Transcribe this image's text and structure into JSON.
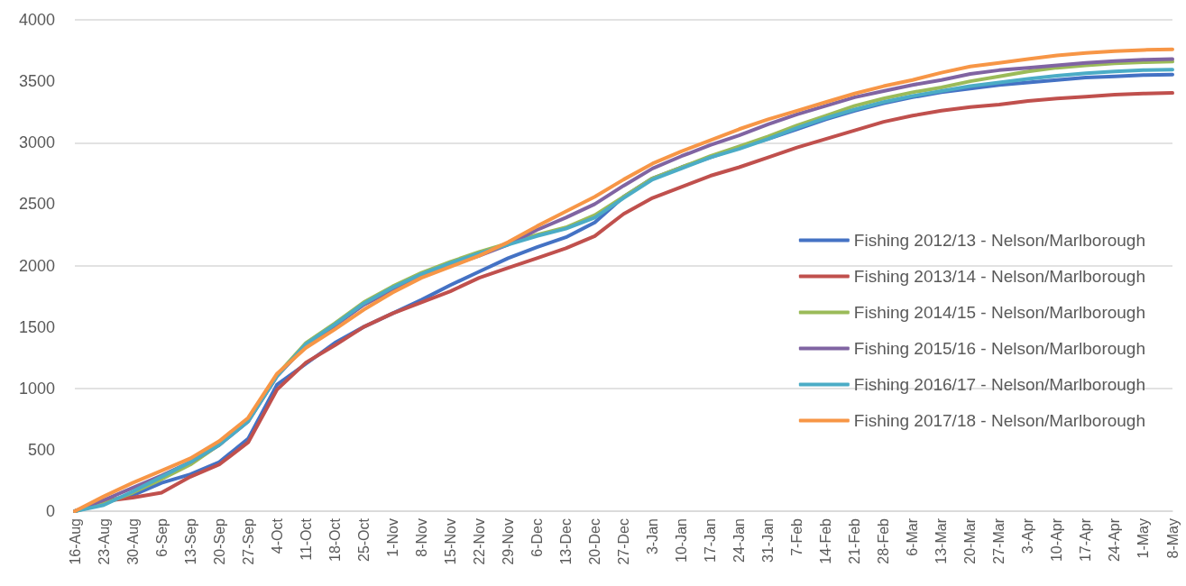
{
  "chart_data": {
    "type": "line",
    "categories": [
      "16-Aug",
      "23-Aug",
      "30-Aug",
      "6-Sep",
      "13-Sep",
      "20-Sep",
      "27-Sep",
      "4-Oct",
      "11-Oct",
      "18-Oct",
      "25-Oct",
      "1-Nov",
      "8-Nov",
      "15-Nov",
      "22-Nov",
      "29-Nov",
      "6-Dec",
      "13-Dec",
      "20-Dec",
      "27-Dec",
      "3-Jan",
      "10-Jan",
      "17-Jan",
      "24-Jan",
      "31-Jan",
      "7-Feb",
      "14-Feb",
      "21-Feb",
      "28-Feb",
      "6-Mar",
      "13-Mar",
      "20-Mar",
      "27-Mar",
      "3-Apr",
      "10-Apr",
      "17-Apr",
      "24-Apr",
      "1-May",
      "8-May"
    ],
    "series": [
      {
        "name": "Fishing 2012/13 - Nelson/Marlborough",
        "color": "#4472c4",
        "values": [
          0,
          80,
          130,
          230,
          300,
          400,
          590,
          1030,
          1200,
          1370,
          1500,
          1610,
          1720,
          1840,
          1950,
          2060,
          2150,
          2230,
          2350,
          2560,
          2710,
          2800,
          2880,
          2960,
          3030,
          3110,
          3190,
          3260,
          3320,
          3370,
          3410,
          3440,
          3470,
          3490,
          3510,
          3530,
          3540,
          3550,
          3555
        ]
      },
      {
        "name": "Fishing 2013/14 - Nelson/Marlborough",
        "color": "#c0504d",
        "values": [
          0,
          80,
          110,
          150,
          280,
          380,
          560,
          990,
          1210,
          1350,
          1500,
          1610,
          1700,
          1790,
          1900,
          1980,
          2060,
          2140,
          2240,
          2420,
          2550,
          2640,
          2730,
          2800,
          2880,
          2960,
          3030,
          3100,
          3170,
          3220,
          3260,
          3290,
          3310,
          3340,
          3360,
          3375,
          3390,
          3400,
          3405
        ]
      },
      {
        "name": "Fishing 2014/15 - Nelson/Marlborough",
        "color": "#9bbb59",
        "values": [
          0,
          60,
          150,
          260,
          380,
          540,
          740,
          1110,
          1370,
          1530,
          1700,
          1830,
          1940,
          2030,
          2110,
          2180,
          2250,
          2310,
          2410,
          2560,
          2710,
          2800,
          2890,
          2970,
          3050,
          3140,
          3220,
          3300,
          3360,
          3410,
          3450,
          3500,
          3540,
          3580,
          3610,
          3630,
          3645,
          3655,
          3660
        ]
      },
      {
        "name": "Fishing 2015/16 - Nelson/Marlborough",
        "color": "#8064a2",
        "values": [
          0,
          90,
          190,
          290,
          400,
          540,
          730,
          1100,
          1350,
          1510,
          1680,
          1800,
          1920,
          2000,
          2080,
          2170,
          2290,
          2390,
          2500,
          2650,
          2790,
          2890,
          2980,
          3060,
          3150,
          3230,
          3300,
          3370,
          3420,
          3470,
          3510,
          3560,
          3590,
          3610,
          3630,
          3650,
          3665,
          3675,
          3680
        ]
      },
      {
        "name": "Fishing 2016/17 - Nelson/Marlborough",
        "color": "#4bacc6",
        "values": [
          0,
          50,
          160,
          280,
          400,
          540,
          730,
          1100,
          1360,
          1520,
          1690,
          1820,
          1930,
          2020,
          2100,
          2170,
          2240,
          2300,
          2390,
          2550,
          2700,
          2790,
          2880,
          2950,
          3030,
          3120,
          3200,
          3270,
          3330,
          3380,
          3420,
          3460,
          3490,
          3520,
          3545,
          3565,
          3580,
          3590,
          3595
        ]
      },
      {
        "name": "Fishing 2017/18 - Nelson/Marlborough",
        "color": "#f79646",
        "values": [
          0,
          120,
          230,
          330,
          430,
          570,
          760,
          1120,
          1330,
          1480,
          1640,
          1780,
          1900,
          1990,
          2080,
          2190,
          2320,
          2440,
          2560,
          2700,
          2830,
          2930,
          3020,
          3110,
          3190,
          3260,
          3330,
          3400,
          3460,
          3510,
          3570,
          3620,
          3650,
          3680,
          3710,
          3730,
          3745,
          3755,
          3760
        ]
      }
    ],
    "ylim": [
      0,
      4000
    ],
    "yticks": [
      0,
      500,
      1000,
      1500,
      2000,
      2500,
      3000,
      3500,
      4000
    ],
    "grid": "y",
    "legend": "right",
    "marker": "none",
    "line_style": "solid"
  }
}
